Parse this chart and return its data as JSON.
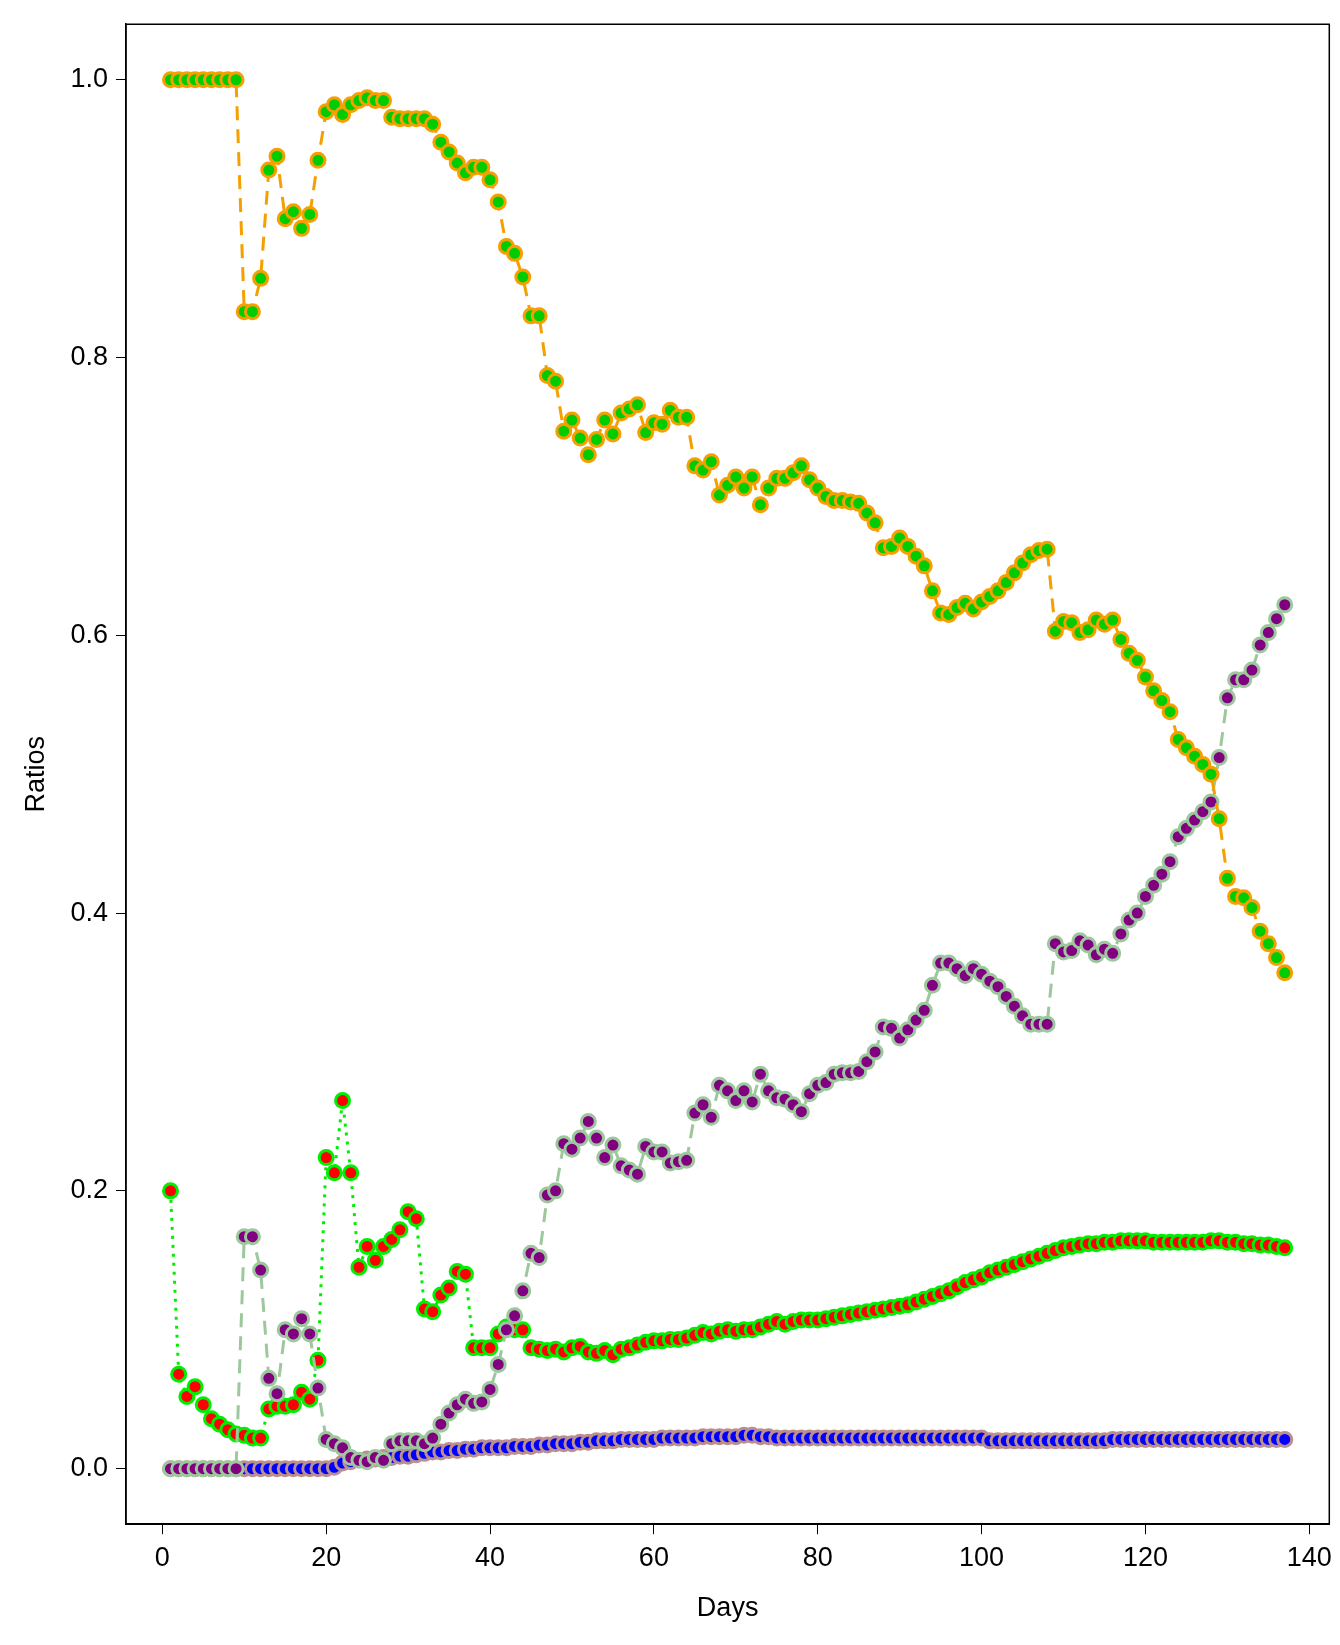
{
  "chart_data": {
    "type": "line",
    "xlabel": "Days",
    "ylabel": "Ratios",
    "marker": "circle",
    "xlim": [
      -4.44,
      142.44
    ],
    "ylim": [
      -0.04,
      1.04
    ],
    "xticks": [
      0,
      20,
      40,
      60,
      80,
      100,
      120,
      140
    ],
    "yticks": [
      {
        "value": 0,
        "label": "0.0"
      },
      0.2,
      0.4,
      0.6,
      0.8,
      {
        "value": 1,
        "label": "1.0"
      }
    ],
    "x": [
      1,
      2,
      3,
      4,
      5,
      6,
      7,
      8,
      9,
      10,
      11,
      12,
      13,
      14,
      15,
      16,
      17,
      18,
      19,
      20,
      21,
      22,
      23,
      24,
      25,
      26,
      27,
      28,
      29,
      30,
      31,
      32,
      33,
      34,
      35,
      36,
      37,
      38,
      39,
      40,
      41,
      42,
      43,
      44,
      45,
      46,
      47,
      48,
      49,
      50,
      51,
      52,
      53,
      54,
      55,
      56,
      57,
      58,
      59,
      60,
      61,
      62,
      63,
      64,
      65,
      66,
      67,
      68,
      69,
      70,
      71,
      72,
      73,
      74,
      75,
      76,
      77,
      78,
      79,
      80,
      81,
      82,
      83,
      84,
      85,
      86,
      87,
      88,
      89,
      90,
      91,
      92,
      93,
      94,
      95,
      96,
      97,
      98,
      99,
      100,
      101,
      102,
      103,
      104,
      105,
      106,
      107,
      108,
      109,
      110,
      111,
      112,
      113,
      114,
      115,
      116,
      117,
      118,
      119,
      120,
      121,
      122,
      123,
      124,
      125,
      126,
      127,
      128,
      129,
      130,
      131,
      132,
      133,
      134,
      135,
      136,
      137
    ],
    "series": [
      {
        "color": "#0000ff",
        "type": "scatter",
        "values": [
          0,
          0,
          0,
          0,
          0,
          0,
          0,
          0,
          0,
          0,
          0,
          0,
          0,
          0,
          0,
          0,
          0,
          0,
          0,
          0,
          0.001,
          0.004,
          0.005,
          null,
          0.007,
          0.007,
          0.008,
          0.008,
          0.009,
          0.009,
          0.01,
          0.011,
          0.012,
          0.012,
          0.013,
          0.013,
          0.014,
          0.014,
          0.015,
          0.015,
          0.015,
          0.015,
          0.016,
          0.016,
          0.016,
          0.017,
          0.017,
          0.018,
          0.018,
          0.018,
          0.019,
          0.019,
          0.02,
          0.02,
          0.02,
          0.021,
          0.021,
          0.021,
          0.021,
          0.021,
          0.022,
          0.022,
          0.022,
          0.022,
          0.022,
          0.023,
          0.023,
          0.023,
          0.023,
          0.023,
          0.024,
          0.024,
          0.023,
          0.023,
          0.022,
          0.022,
          0.022,
          0.022,
          0.022,
          0.022,
          0.022,
          0.022,
          0.022,
          0.022,
          0.022,
          0.022,
          0.022,
          0.022,
          0.022,
          0.022,
          0.022,
          0.022,
          0.022,
          0.022,
          0.022,
          0.022,
          0.022,
          0.022,
          0.022,
          0.022,
          0.02,
          0.02,
          0.02,
          0.02,
          0.02,
          0.02,
          0.02,
          0.02,
          0.02,
          0.02,
          0.02,
          0.02,
          0.02,
          0.02,
          0.02,
          0.021,
          0.021,
          0.021,
          0.021,
          0.021,
          0.021,
          0.021,
          0.021,
          0.021,
          0.021,
          0.021,
          0.021,
          0.021,
          0.021,
          0.021,
          0.021,
          0.021,
          0.021,
          0.021,
          0.021,
          0.021,
          0.021
        ]
      },
      {
        "color": "#ff0000",
        "line_style": "dotted",
        "values": [
          0.2,
          0.068,
          0.052,
          0.059,
          0.046,
          0.036,
          0.032,
          0.028,
          0.025,
          0.024,
          0.022,
          0.022,
          0.043,
          0.045,
          0.045,
          0.046,
          0.055,
          0.05,
          0.078,
          0.224,
          0.213,
          0.265,
          0.213,
          0.145,
          0.16,
          0.15,
          0.16,
          0.165,
          0.172,
          0.185,
          0.18,
          0.115,
          0.113,
          0.125,
          0.13,
          0.142,
          0.14,
          0.087,
          0.087,
          0.087,
          0.097,
          0.102,
          0.1,
          0.1,
          0.087,
          0.086,
          0.085,
          0.086,
          0.084,
          0.087,
          0.088,
          0.084,
          0.083,
          0.085,
          0.082,
          0.086,
          0.087,
          0.089,
          0.091,
          0.092,
          0.092,
          0.093,
          0.093,
          0.094,
          0.096,
          0.098,
          0.097,
          0.099,
          0.1,
          0.099,
          0.1,
          0.1,
          0.102,
          0.104,
          0.106,
          0.104,
          0.106,
          0.107,
          0.107,
          0.107,
          0.108,
          0.109,
          0.11,
          0.111,
          0.112,
          0.113,
          0.114,
          0.115,
          0.116,
          0.117,
          0.118,
          0.12,
          0.122,
          0.124,
          0.126,
          0.128,
          0.131,
          0.134,
          0.136,
          0.138,
          0.141,
          0.143,
          0.145,
          0.147,
          0.149,
          0.151,
          0.153,
          0.155,
          0.157,
          0.159,
          0.16,
          0.161,
          0.162,
          0.162,
          0.163,
          0.163,
          0.164,
          0.164,
          0.164,
          0.164,
          0.163,
          0.163,
          0.163,
          0.163,
          0.163,
          0.163,
          0.163,
          0.164,
          0.164,
          0.163,
          0.163,
          0.162,
          0.162,
          0.161,
          0.161,
          0.16,
          0.159
        ]
      },
      {
        "color": "#800080",
        "line_style": "dashed",
        "values": [
          0,
          0,
          0,
          0,
          0,
          0,
          0,
          0,
          0,
          0.167,
          0.167,
          0.143,
          0.065,
          0.054,
          0.1,
          0.097,
          0.108,
          0.097,
          0.058,
          0.021,
          0.018,
          0.015,
          0.008,
          0.006,
          0.005,
          0.008,
          0.006,
          0.018,
          0.02,
          0.02,
          0.02,
          0.018,
          0.022,
          0.032,
          0.04,
          0.046,
          0.05,
          0.047,
          0.048,
          0.057,
          0.075,
          0.1,
          0.11,
          0.128,
          0.155,
          0.152,
          0.197,
          0.2,
          0.234,
          0.23,
          0.238,
          0.25,
          0.238,
          0.224,
          0.233,
          0.218,
          0.215,
          0.212,
          0.232,
          0.228,
          0.228,
          0.22,
          0.221,
          0.222,
          0.256,
          0.262,
          0.253,
          0.276,
          0.272,
          0.265,
          0.272,
          0.264,
          0.284,
          0.272,
          0.267,
          0.266,
          0.262,
          0.257,
          0.27,
          0.276,
          0.278,
          0.284,
          0.285,
          0.285,
          0.286,
          0.293,
          0.3,
          0.318,
          0.317,
          0.31,
          0.316,
          0.323,
          0.33,
          0.348,
          0.364,
          0.364,
          0.36,
          0.355,
          0.36,
          0.356,
          0.351,
          0.347,
          0.34,
          0.333,
          0.326,
          0.32,
          0.32,
          0.32,
          0.378,
          0.372,
          0.373,
          0.38,
          0.377,
          0.37,
          0.374,
          0.371,
          0.385,
          0.395,
          0.4,
          0.412,
          0.42,
          0.428,
          0.437,
          0.455,
          0.461,
          0.467,
          0.473,
          0.48,
          0.512,
          0.555,
          0.568,
          0.568,
          0.575,
          0.593,
          0.602,
          0.612,
          0.622
        ]
      },
      {
        "color": "#00cc00",
        "line_style": "dashed",
        "values": [
          1,
          1,
          1,
          1,
          1,
          1,
          1,
          1,
          1,
          0.833,
          0.833,
          0.857,
          0.935,
          0.945,
          0.9,
          0.905,
          0.893,
          0.903,
          0.942,
          0.977,
          0.982,
          0.975,
          0.982,
          0.985,
          0.987,
          0.985,
          0.985,
          0.973,
          0.972,
          0.972,
          0.972,
          0.972,
          0.968,
          0.955,
          0.948,
          0.94,
          0.933,
          0.937,
          0.937,
          0.928,
          0.912,
          0.88,
          0.875,
          0.858,
          0.83,
          0.83,
          0.787,
          0.783,
          0.747,
          0.755,
          0.742,
          0.73,
          0.741,
          0.755,
          0.745,
          0.76,
          0.763,
          0.766,
          0.746,
          0.753,
          0.752,
          0.762,
          0.757,
          0.757,
          0.722,
          0.719,
          0.725,
          0.701,
          0.708,
          0.714,
          0.706,
          0.714,
          0.694,
          0.706,
          0.713,
          0.713,
          0.717,
          0.722,
          0.712,
          0.706,
          0.7,
          0.697,
          0.697,
          0.696,
          0.695,
          0.688,
          0.681,
          0.663,
          0.664,
          0.67,
          0.664,
          0.657,
          0.65,
          0.632,
          0.616,
          0.615,
          0.62,
          0.623,
          0.619,
          0.624,
          0.628,
          0.632,
          0.638,
          0.645,
          0.652,
          0.658,
          0.661,
          0.662,
          0.603,
          0.61,
          0.609,
          0.602,
          0.604,
          0.611,
          0.608,
          0.611,
          0.597,
          0.587,
          0.582,
          0.57,
          0.56,
          0.553,
          0.545,
          0.525,
          0.519,
          0.513,
          0.507,
          0.5,
          0.468,
          0.425,
          0.412,
          0.411,
          0.404,
          0.387,
          0.378,
          0.368,
          0.357
        ]
      }
    ]
  }
}
